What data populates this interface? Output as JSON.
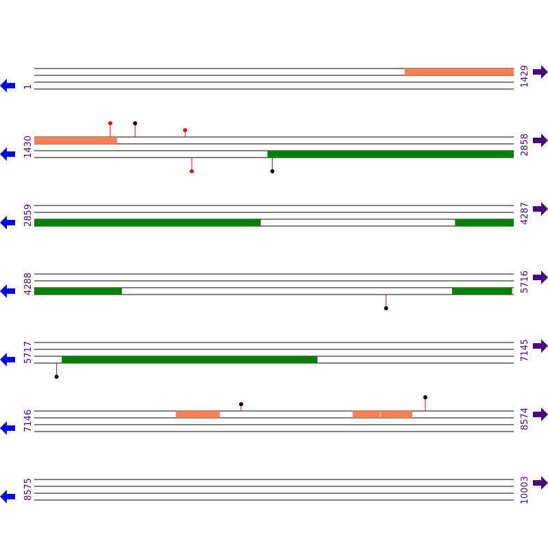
{
  "colors": {
    "track_line": "#000000",
    "forward_feature": "#ff7f50",
    "reverse_feature": "#008000",
    "left_arrow": "#0000ee",
    "right_arrow": "#4b0082",
    "coordinate_text": "#4b0082",
    "stem": "#ff0000",
    "marker_red": "#ff0000",
    "marker_black": "#000000"
  },
  "icons": {
    "left": "left-arrow-icon",
    "right": "right-arrow-icon"
  },
  "rows": [
    {
      "start": 1,
      "end": 1429,
      "start_label": "1",
      "end_label": "1429",
      "features": [
        {
          "strand": "forward",
          "start": 1105,
          "end": 1429
        }
      ],
      "markers": []
    },
    {
      "start": 1430,
      "end": 2858,
      "start_label": "1430",
      "end_label": "2858",
      "features": [
        {
          "strand": "forward",
          "start": 1430,
          "end": 1676
        },
        {
          "strand": "reverse",
          "start": 2125,
          "end": 2858
        }
      ],
      "markers": [
        {
          "position": 1656,
          "side": "above",
          "color": "red",
          "level": 2
        },
        {
          "position": 1730,
          "side": "above",
          "color": "black",
          "level": 2
        },
        {
          "position": 1879,
          "side": "above",
          "color": "red",
          "level": 1
        },
        {
          "position": 1899,
          "side": "below",
          "color": "red",
          "level": 2
        },
        {
          "position": 2139,
          "side": "below",
          "color": "black",
          "level": 2
        }
      ]
    },
    {
      "start": 2859,
      "end": 4287,
      "start_label": "2859",
      "end_label": "4287",
      "features": [
        {
          "strand": "reverse",
          "start": 2859,
          "end": 3533
        },
        {
          "strand": "reverse",
          "start": 4113,
          "end": 4287
        }
      ],
      "markers": []
    },
    {
      "start": 4288,
      "end": 5716,
      "start_label": "4288",
      "end_label": "5716",
      "features": [
        {
          "strand": "reverse",
          "start": 4288,
          "end": 4548
        },
        {
          "strand": "reverse",
          "start": 5533,
          "end": 5711
        }
      ],
      "markers": [
        {
          "position": 5336,
          "side": "below",
          "color": "black",
          "level": 2
        }
      ]
    },
    {
      "start": 5717,
      "end": 7145,
      "start_label": "5717",
      "end_label": "7145",
      "features": [
        {
          "strand": "reverse",
          "start": 5799,
          "end": 6560
        }
      ],
      "markers": [
        {
          "position": 5783,
          "side": "below",
          "color": "black",
          "level": 2
        }
      ]
    },
    {
      "start": 7146,
      "end": 8574,
      "start_label": "7146",
      "end_label": "8574",
      "features": [
        {
          "strand": "forward",
          "start": 7568,
          "end": 7698
        },
        {
          "strand": "forward",
          "start": 8095,
          "end": 8175
        },
        {
          "strand": "forward",
          "start": 8178,
          "end": 8272
        }
      ],
      "markers": [
        {
          "position": 7762,
          "side": "above",
          "color": "black",
          "level": 1
        },
        {
          "position": 8311,
          "side": "above",
          "color": "black",
          "level": 2
        }
      ]
    },
    {
      "start": 8575,
      "end": 10003,
      "start_label": "8575",
      "end_label": "10003",
      "features": [],
      "markers": []
    }
  ]
}
